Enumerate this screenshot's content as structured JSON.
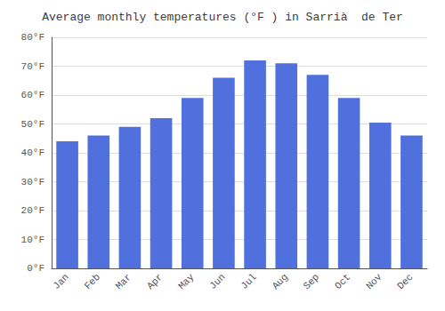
{
  "chart_data": {
    "type": "bar",
    "title": "Average monthly temperatures (°F ) in Sarrià  de Ter",
    "categories": [
      "Jan",
      "Feb",
      "Mar",
      "Apr",
      "May",
      "Jun",
      "Jul",
      "Aug",
      "Sep",
      "Oct",
      "Nov",
      "Dec"
    ],
    "values": [
      44.0,
      46.0,
      49.0,
      52.0,
      59.0,
      66.0,
      72.0,
      71.0,
      67.0,
      59.0,
      50.5,
      46.0
    ],
    "ylim": [
      0,
      80
    ],
    "yticks": [
      {
        "value": 0,
        "label": "0°F"
      },
      {
        "value": 10,
        "label": "10°F"
      },
      {
        "value": 20,
        "label": "20°F"
      },
      {
        "value": 30,
        "label": "30°F"
      },
      {
        "value": 40,
        "label": "40°F"
      },
      {
        "value": 50,
        "label": "50°F"
      },
      {
        "value": 60,
        "label": "60°F"
      },
      {
        "value": 70,
        "label": "70°F"
      },
      {
        "value": 80,
        "label": "80°F"
      }
    ],
    "grid": true
  }
}
